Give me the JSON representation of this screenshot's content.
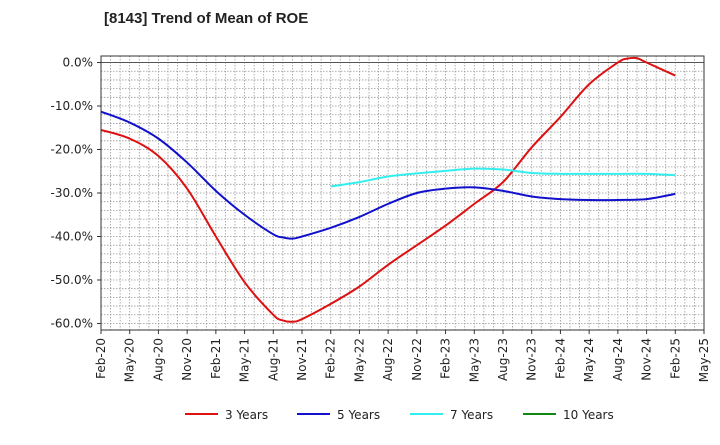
{
  "chart_data": {
    "type": "line",
    "title": "[8143]  Trend of Mean of ROE",
    "xlabel": "",
    "ylabel": "",
    "x_ticks": [
      "Feb-20",
      "May-20",
      "Aug-20",
      "Nov-20",
      "Feb-21",
      "May-21",
      "Aug-21",
      "Nov-21",
      "Feb-22",
      "May-22",
      "Aug-22",
      "Nov-22",
      "Feb-23",
      "May-23",
      "Aug-23",
      "Nov-23",
      "Feb-24",
      "May-24",
      "Aug-24",
      "Nov-24",
      "Feb-25",
      "May-25"
    ],
    "y_ticks": [
      "0.0%",
      "-10.0%",
      "-20.0%",
      "-30.0%",
      "-40.0%",
      "-50.0%",
      "-60.0%"
    ],
    "y_tick_values": [
      0,
      -10,
      -20,
      -30,
      -40,
      -50,
      -60
    ],
    "ylim": [
      -61.5,
      1.5
    ],
    "grid": true,
    "legend_position": "bottom",
    "series": [
      {
        "name": "3 Years",
        "color": "#dd1111",
        "x": [
          "2020-02",
          "2020-05",
          "2020-08",
          "2020-11",
          "2021-02",
          "2021-05",
          "2021-08",
          "2021-09",
          "2021-10",
          "2021-11",
          "2022-02",
          "2022-05",
          "2022-08",
          "2022-11",
          "2023-02",
          "2023-05",
          "2023-08",
          "2023-11",
          "2024-02",
          "2024-05",
          "2024-08",
          "2024-09",
          "2024-10",
          "2024-11",
          "2025-02"
        ],
        "values": [
          -15.5,
          -17.5,
          -21.5,
          -29.0,
          -40.0,
          -50.5,
          -58.0,
          -59.3,
          -59.6,
          -59.0,
          -55.5,
          -51.5,
          -46.5,
          -42.0,
          -37.5,
          -32.5,
          -27.5,
          -19.5,
          -12.5,
          -5.0,
          0.0,
          0.9,
          1.0,
          0.0,
          -3.0
        ]
      },
      {
        "name": "5 Years",
        "color": "#1111cc",
        "x": [
          "2020-02",
          "2020-05",
          "2020-08",
          "2020-11",
          "2021-02",
          "2021-05",
          "2021-08",
          "2021-09",
          "2021-10",
          "2021-11",
          "2022-02",
          "2022-05",
          "2022-08",
          "2022-11",
          "2023-02",
          "2023-05",
          "2023-08",
          "2023-11",
          "2024-02",
          "2024-05",
          "2024-08",
          "2024-11",
          "2025-02"
        ],
        "values": [
          -11.3,
          -13.8,
          -17.5,
          -23.0,
          -29.5,
          -35.0,
          -39.5,
          -40.2,
          -40.5,
          -40.0,
          -38.0,
          -35.5,
          -32.5,
          -30.0,
          -29.0,
          -28.7,
          -29.5,
          -30.8,
          -31.4,
          -31.6,
          -31.6,
          -31.4,
          -30.2
        ]
      },
      {
        "name": "7 Years",
        "color": "#33eeee",
        "x": [
          "2022-02",
          "2022-05",
          "2022-08",
          "2022-11",
          "2023-02",
          "2023-05",
          "2023-08",
          "2023-11",
          "2024-02",
          "2024-05",
          "2024-08",
          "2024-11",
          "2025-02"
        ],
        "values": [
          -28.5,
          -27.5,
          -26.2,
          -25.5,
          -24.9,
          -24.4,
          -24.6,
          -25.4,
          -25.6,
          -25.6,
          -25.6,
          -25.6,
          -25.9
        ]
      },
      {
        "name": "10 Years",
        "color": "#118811",
        "x": [],
        "values": []
      }
    ]
  }
}
